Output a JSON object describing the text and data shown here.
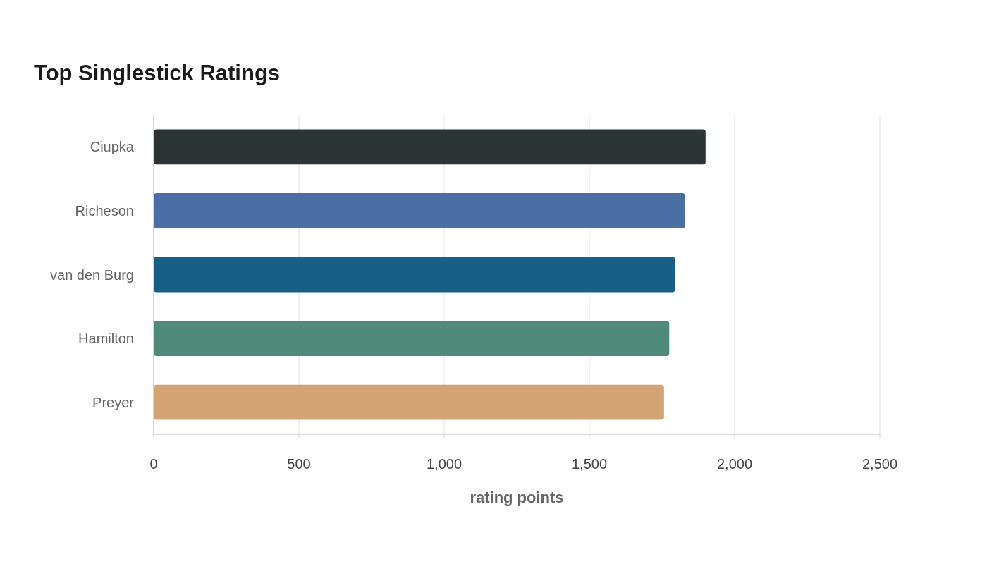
{
  "chart_data": {
    "type": "bar",
    "orientation": "horizontal",
    "title": "Top Singlestick Ratings",
    "xlabel": "rating points",
    "categories": [
      "Ciupka",
      "Richeson",
      "van den Burg",
      "Hamilton",
      "Preyer"
    ],
    "values": [
      1900,
      1830,
      1795,
      1775,
      1757
    ],
    "colors": [
      "#2d3436",
      "#4a6fa5",
      "#166088",
      "#4f8a7a",
      "#d4a373"
    ],
    "xlim": [
      0,
      2500
    ],
    "xticks": [
      0,
      {
        "value": 500,
        "label": "500"
      },
      {
        "value": 1000,
        "label": "1,000"
      },
      {
        "value": 1500,
        "label": "1,500"
      },
      {
        "value": 2000,
        "label": "2,000"
      },
      {
        "value": 2500,
        "label": "2,500"
      }
    ],
    "grid": "x"
  }
}
